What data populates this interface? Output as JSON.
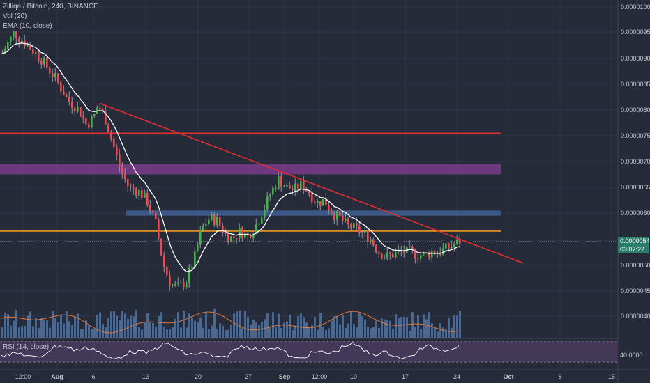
{
  "legend": {
    "title": "Zilliqa / Bitcoin, 240, BINANCE",
    "vol": "Vol (20)",
    "ema": "EMA (10, close)",
    "rsi": "RSI (14, close)"
  },
  "price_badge": {
    "price": "0.00000545",
    "countdown": "03:07:22"
  },
  "colors": {
    "background": "#262b3a",
    "up": "#4caf50",
    "down": "#e0515a",
    "wick": "#b0b4be",
    "ema": "#ffffff",
    "trendline": "#e62e2e",
    "hline_red": "#e62e2e",
    "hline_orange": "#f09a22",
    "band_purple": "#7b3b8c",
    "band_blue": "#3f5f95",
    "volume": "#5b7ea8",
    "vol_ma": "#e0783c",
    "rsi_line": "#ffffff",
    "rsi_band": "#5b4470",
    "badge_bg": "#2a7d6b"
  },
  "chart_data": {
    "type": "candlestick",
    "title": "Zilliqa / Bitcoin, 240, BINANCE",
    "y_axis": {
      "ticks": [
        "0.00001000",
        "0.00000950",
        "0.00000900",
        "0.00000850",
        "0.00000800",
        "0.00000750",
        "0.00000700",
        "0.00000650",
        "0.00000600",
        "0.00000545",
        "0.00000500",
        "0.00000450",
        "0.00000400"
      ],
      "tick_values": [
        1e-05,
        9.5e-06,
        9e-06,
        8.5e-06,
        8e-06,
        7.5e-06,
        7e-06,
        6.5e-06,
        6e-06,
        5.45e-06,
        5e-06,
        4.5e-06,
        4e-06
      ],
      "range": [
        3.7e-06,
        1.01e-05
      ]
    },
    "x_axis": {
      "ticks": [
        "12:00",
        "Aug",
        "6",
        "13",
        "20",
        "27",
        "Sep",
        "12:00",
        "10",
        "17",
        "24",
        "Oct",
        "8",
        "15"
      ]
    },
    "price_path": [
      [
        0,
        9.1e-06
      ],
      [
        3,
        9.5e-06
      ],
      [
        6,
        9.3e-06
      ],
      [
        10,
        9e-06
      ],
      [
        14,
        8.6e-06
      ],
      [
        17,
        8.2e-06
      ],
      [
        20,
        8e-06
      ],
      [
        22,
        7.7e-06
      ],
      [
        24,
        7.9e-06
      ],
      [
        25,
        8.1e-06
      ],
      [
        27,
        7.8e-06
      ],
      [
        29,
        7.3e-06
      ],
      [
        31,
        6.8e-06
      ],
      [
        33,
        6.5e-06
      ],
      [
        36,
        6.4e-06
      ],
      [
        38,
        6.2e-06
      ],
      [
        40,
        5.8e-06
      ],
      [
        42,
        5e-06
      ],
      [
        44,
        4.6e-06
      ],
      [
        46,
        4.55e-06
      ],
      [
        48,
        4.7e-06
      ],
      [
        50,
        5.1e-06
      ],
      [
        52,
        5.7e-06
      ],
      [
        54,
        5.9e-06
      ],
      [
        56,
        5.85e-06
      ],
      [
        58,
        5.6e-06
      ],
      [
        60,
        5.5e-06
      ],
      [
        62,
        5.65e-06
      ],
      [
        64,
        5.55e-06
      ],
      [
        66,
        5.75e-06
      ],
      [
        68,
        6.05e-06
      ],
      [
        70,
        6.4e-06
      ],
      [
        72,
        6.65e-06
      ],
      [
        74,
        6.5e-06
      ],
      [
        76,
        6.45e-06
      ],
      [
        78,
        6.55e-06
      ],
      [
        80,
        6.4e-06
      ],
      [
        82,
        6.2e-06
      ],
      [
        84,
        6.25e-06
      ],
      [
        86,
        6e-06
      ],
      [
        88,
        5.9e-06
      ],
      [
        90,
        5.75e-06
      ],
      [
        92,
        5.7e-06
      ],
      [
        94,
        5.6e-06
      ],
      [
        96,
        5.5e-06
      ],
      [
        98,
        5.25e-06
      ],
      [
        100,
        5.15e-06
      ],
      [
        102,
        5.2e-06
      ],
      [
        104,
        5.25e-06
      ],
      [
        106,
        5.25e-06
      ],
      [
        108,
        5.2e-06
      ],
      [
        110,
        5.18e-06
      ],
      [
        112,
        5.25e-06
      ],
      [
        114,
        5.25e-06
      ],
      [
        116,
        5.32e-06
      ],
      [
        118,
        5.4e-06
      ],
      [
        120,
        5.48e-06
      ]
    ],
    "ema_period": 10,
    "trendline": {
      "from": [
        22,
        8.13e-06
      ],
      "to": [
        160,
        5.03e-06
      ]
    },
    "horizontal_levels": [
      {
        "value": 7.55e-06,
        "color": "red"
      },
      {
        "value": 5.65e-06,
        "color": "orange"
      }
    ],
    "bands": [
      {
        "from_value": 6.75e-06,
        "to_value": 6.95e-06,
        "color": "purple"
      },
      {
        "from_value": 5.95e-06,
        "to_value": 6.05e-06,
        "color": "blue"
      }
    ],
    "rsi": {
      "current": "40.0000",
      "upper": 70,
      "lower": 30
    }
  }
}
